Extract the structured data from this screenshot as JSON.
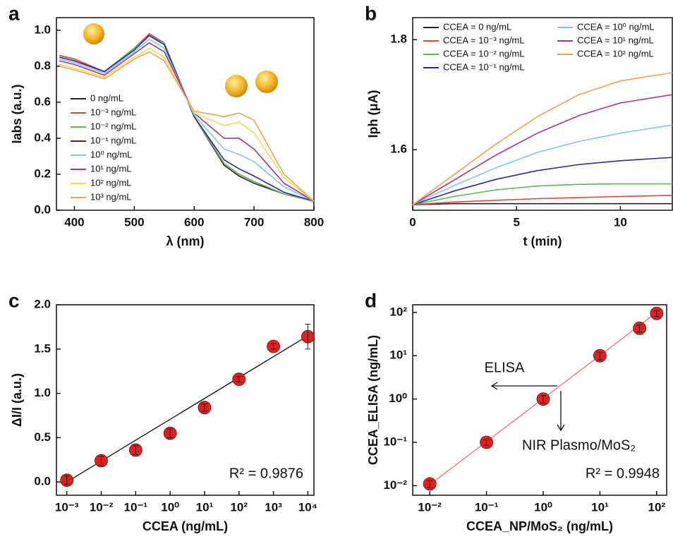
{
  "chart_data": [
    {
      "type": "line",
      "panel": "a",
      "xlabel": "λ (nm)",
      "ylabel": "Iabs (a.u.)",
      "x": [
        375,
        400,
        450,
        500,
        525,
        550,
        600,
        650,
        675,
        700,
        750,
        800
      ],
      "xlim": [
        370,
        800
      ],
      "ylim": [
        0,
        1.07
      ],
      "xticks": [
        400,
        500,
        600,
        700,
        800
      ],
      "yticks": [
        {
          "value": 0,
          "label": "0.0"
        },
        0.2,
        0.4,
        0.6,
        0.8,
        {
          "value": 1,
          "label": "1.0"
        }
      ],
      "legend": "lower left",
      "series": [
        {
          "name": "0 ng/mL",
          "color": "#222222",
          "values": [
            0.86,
            0.84,
            0.77,
            0.9,
            0.98,
            0.93,
            0.52,
            0.25,
            0.19,
            0.15,
            0.09,
            0.05
          ]
        },
        {
          "name": "10⁻³ ng/mL",
          "color": "#e8463c",
          "values": [
            0.86,
            0.84,
            0.77,
            0.9,
            0.98,
            0.93,
            0.52,
            0.26,
            0.2,
            0.16,
            0.09,
            0.05
          ]
        },
        {
          "name": "10⁻² ng/mL",
          "color": "#5cb85c",
          "values": [
            0.85,
            0.83,
            0.77,
            0.9,
            0.97,
            0.93,
            0.52,
            0.26,
            0.2,
            0.16,
            0.09,
            0.05
          ]
        },
        {
          "name": "10⁻¹ ng/mL",
          "color": "#2a2aa0",
          "values": [
            0.85,
            0.83,
            0.77,
            0.89,
            0.97,
            0.92,
            0.52,
            0.28,
            0.23,
            0.19,
            0.1,
            0.05
          ]
        },
        {
          "name": "10⁰ ng/mL",
          "color": "#7ec8e8",
          "values": [
            0.84,
            0.82,
            0.76,
            0.88,
            0.95,
            0.9,
            0.53,
            0.34,
            0.31,
            0.27,
            0.13,
            0.05
          ]
        },
        {
          "name": "10¹ ng/mL",
          "color": "#b03090",
          "values": [
            0.83,
            0.81,
            0.75,
            0.87,
            0.93,
            0.88,
            0.54,
            0.4,
            0.4,
            0.34,
            0.15,
            0.05
          ]
        },
        {
          "name": "10² ng/mL",
          "color": "#f0e040",
          "values": [
            0.81,
            0.79,
            0.74,
            0.85,
            0.9,
            0.85,
            0.54,
            0.47,
            0.49,
            0.43,
            0.18,
            0.05
          ]
        },
        {
          "name": "10³ ng/mL",
          "color": "#f5a050",
          "values": [
            0.8,
            0.78,
            0.73,
            0.84,
            0.88,
            0.83,
            0.55,
            0.52,
            0.54,
            0.5,
            0.2,
            0.05
          ]
        }
      ]
    },
    {
      "type": "line",
      "panel": "b",
      "xlabel": "t (min)",
      "ylabel": "Iph (μA)",
      "x": [
        0,
        2,
        4,
        6,
        8,
        10,
        12.5
      ],
      "xlim": [
        0,
        12.5
      ],
      "ylim": [
        1.49,
        1.84
      ],
      "xticks": [
        0,
        5,
        10
      ],
      "yticks": [
        1.6,
        1.8
      ],
      "legend": "upper left",
      "series": [
        {
          "name": "CCEA = 0 ng/mL",
          "color": "#222222",
          "values": [
            1.5,
            1.502,
            1.502,
            1.502,
            1.502,
            1.502,
            1.502
          ]
        },
        {
          "name": "CCEA = 10⁻³ ng/mL",
          "color": "#e8463c",
          "values": [
            1.5,
            1.505,
            1.508,
            1.511,
            1.513,
            1.515,
            1.517
          ]
        },
        {
          "name": "CCEA = 10⁻² ng/mL",
          "color": "#5cb85c",
          "values": [
            1.5,
            1.515,
            1.527,
            1.534,
            1.537,
            1.538,
            1.538
          ]
        },
        {
          "name": "CCEA = 10⁻¹ ng/mL",
          "color": "#2a2aa0",
          "values": [
            1.5,
            1.525,
            1.546,
            1.562,
            1.573,
            1.58,
            1.586
          ]
        },
        {
          "name": "CCEA = 10⁰ ng/mL",
          "color": "#7ec8e8",
          "values": [
            1.5,
            1.535,
            1.567,
            1.595,
            1.615,
            1.63,
            1.645
          ]
        },
        {
          "name": "CCEA = 10¹ ng/mL",
          "color": "#b03090",
          "values": [
            1.5,
            1.545,
            1.59,
            1.63,
            1.662,
            1.685,
            1.7
          ]
        },
        {
          "name": "CCEA = 10² ng/mL",
          "color": "#f5a050",
          "values": [
            1.5,
            1.555,
            1.61,
            1.66,
            1.7,
            1.725,
            1.74
          ]
        }
      ]
    },
    {
      "type": "scatter",
      "panel": "c",
      "xlabel": "CCEA (ng/mL)",
      "ylabel": "ΔI/I (a.u.)",
      "xlog": true,
      "xlim": [
        0.0005,
        15000
      ],
      "ylim": [
        -0.15,
        2.0
      ],
      "xticks": [
        {
          "value": 0.001,
          "label": "10⁻³"
        },
        {
          "value": 0.01,
          "label": "10⁻²"
        },
        {
          "value": 0.1,
          "label": "10⁻¹"
        },
        {
          "value": 1,
          "label": "10⁰"
        },
        {
          "value": 10,
          "label": "10¹"
        },
        {
          "value": 100,
          "label": "10²"
        },
        {
          "value": 1000,
          "label": "10³"
        },
        {
          "value": 10000,
          "label": "10⁴"
        }
      ],
      "yticks": [
        {
          "value": 0,
          "label": "0.0"
        },
        0.5,
        {
          "value": 1,
          "label": "1.0"
        },
        1.5,
        {
          "value": 2,
          "label": "2.0"
        }
      ],
      "color": "#e02020",
      "x": [
        0.001,
        0.01,
        0.1,
        1,
        10,
        100,
        1000,
        10000
      ],
      "values": [
        0.02,
        0.24,
        0.36,
        0.55,
        0.84,
        1.16,
        1.53,
        1.64
      ],
      "errors": [
        0.05,
        0.05,
        0.05,
        0.05,
        0.04,
        0.03,
        0.03,
        0.14
      ],
      "fit": {
        "x": [
          0.001,
          10000
        ],
        "y": [
          0.0,
          1.65
        ],
        "color": "#111111"
      },
      "annotations": [
        "R² = 0.9876"
      ]
    },
    {
      "type": "scatter",
      "panel": "d",
      "xlabel": "CCEA_NP/MoS₂ (ng/mL)",
      "ylabel": "CCEA_ELISA (ng/mL)",
      "xlog": true,
      "ylog": true,
      "xlim": [
        0.005,
        150
      ],
      "ylim": [
        0.006,
        150
      ],
      "xticks": [
        {
          "value": 0.01,
          "label": "10⁻²"
        },
        {
          "value": 0.1,
          "label": "10⁻¹"
        },
        {
          "value": 1,
          "label": "10⁰"
        },
        {
          "value": 10,
          "label": "10¹"
        },
        {
          "value": 100,
          "label": "10²"
        }
      ],
      "yticks": [
        {
          "value": 0.01,
          "label": "10⁻²"
        },
        {
          "value": 0.1,
          "label": "10⁻¹"
        },
        {
          "value": 1,
          "label": "10⁰"
        },
        {
          "value": 10,
          "label": "10¹"
        },
        {
          "value": 100,
          "label": "10²"
        }
      ],
      "color": "#e02020",
      "x": [
        0.01,
        0.1,
        1,
        10,
        50,
        100
      ],
      "values": [
        0.011,
        0.1,
        1.0,
        10,
        43,
        95
      ],
      "errors": [
        0.002,
        0.015,
        0.2,
        2,
        8,
        15
      ],
      "fit": {
        "x": [
          0.01,
          100
        ],
        "y": [
          0.0105,
          100
        ],
        "color": "#f07070"
      },
      "annotations": [
        "ELISA",
        "NIR Plasmo/MoS₂",
        "R² = 0.9948"
      ]
    }
  ]
}
